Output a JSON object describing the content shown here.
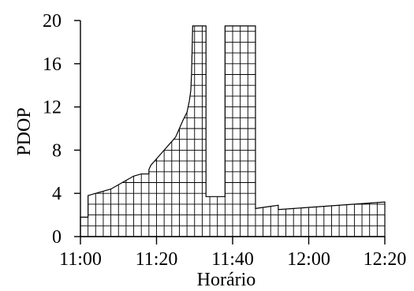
{
  "chart_data": {
    "type": "area",
    "title": "",
    "xlabel": "Horário",
    "ylabel": "PDOP",
    "x_unit": "minutes",
    "xlim": [
      0,
      80
    ],
    "ylim": [
      0,
      20
    ],
    "x_ticks": [
      0,
      20,
      40,
      60,
      80
    ],
    "x_tick_labels": [
      "11:00",
      "11:20",
      "11:40",
      "12:00",
      "12:20"
    ],
    "y_ticks": [
      0,
      4,
      8,
      12,
      16,
      20
    ],
    "y_tick_labels": [
      "0",
      "4",
      "8",
      "12",
      "16",
      "20"
    ],
    "grid": "hatched-under-curve",
    "series": [
      {
        "name": "",
        "points": [
          [
            0,
            1.8
          ],
          [
            2,
            1.8
          ],
          [
            2,
            3.8
          ],
          [
            4,
            4.0
          ],
          [
            6,
            4.2
          ],
          [
            8,
            4.4
          ],
          [
            10,
            4.8
          ],
          [
            12,
            5.2
          ],
          [
            14,
            5.6
          ],
          [
            16,
            5.8
          ],
          [
            18,
            5.8
          ],
          [
            18,
            6.2
          ],
          [
            18.5,
            6.6
          ],
          [
            20,
            7.2
          ],
          [
            22,
            8.0
          ],
          [
            24,
            8.8
          ],
          [
            25,
            9.2
          ],
          [
            26,
            10.0
          ],
          [
            27,
            10.8
          ],
          [
            28,
            11.5
          ],
          [
            28.6,
            12.5
          ],
          [
            29,
            13.5
          ],
          [
            29.2,
            15.0
          ],
          [
            29.5,
            19.5
          ],
          [
            33,
            19.5
          ],
          [
            33,
            3.7
          ],
          [
            38,
            3.7
          ],
          [
            38,
            19.5
          ],
          [
            46,
            19.5
          ],
          [
            46,
            2.6
          ],
          [
            48,
            2.7
          ],
          [
            50,
            2.8
          ],
          [
            52,
            2.9
          ],
          [
            52,
            2.5
          ],
          [
            56,
            2.6
          ],
          [
            60,
            2.7
          ],
          [
            64,
            2.8
          ],
          [
            68,
            2.9
          ],
          [
            72,
            3.0
          ],
          [
            76,
            3.1
          ],
          [
            80,
            3.2
          ]
        ]
      }
    ]
  }
}
